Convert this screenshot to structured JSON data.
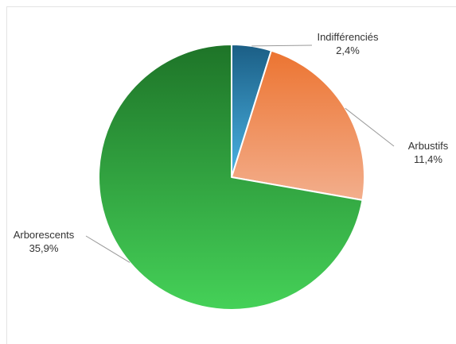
{
  "chart_data": {
    "type": "pie",
    "slices": [
      {
        "name": "Indifférenciés",
        "label": "2,4%",
        "value": 2.4,
        "color_dark": "#1b5e85",
        "color_light": "#4ab3e4"
      },
      {
        "name": "Arbustifs",
        "label": "11,4%",
        "value": 11.4,
        "color_dark": "#ec7431",
        "color_light": "#f3ae8c"
      },
      {
        "name": "Arborescents",
        "label": "35,9%",
        "value": 35.9,
        "color_dark": "#1e7428",
        "color_light": "#45d158"
      }
    ],
    "start_angle": "top",
    "direction": "clockwise"
  }
}
